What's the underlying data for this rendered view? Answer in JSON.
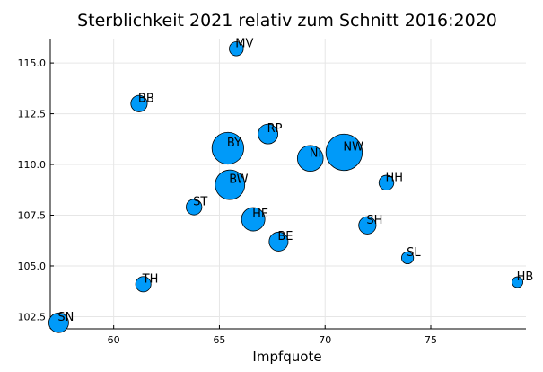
{
  "chart_data": {
    "type": "scatter",
    "title": "Sterblichkeit 2021 relativ zum Schnitt 2016:2020",
    "xlabel": "Impfquote",
    "ylabel": "",
    "xlim": [
      57.0,
      79.5
    ],
    "ylim": [
      101.9,
      116.2
    ],
    "xticks": [
      "60",
      "65",
      "70",
      "75"
    ],
    "yticks": [
      "102.5",
      "105.0",
      "107.5",
      "110.0",
      "112.5",
      "115.0"
    ],
    "grid": true,
    "legend": "none",
    "marker_color": "#009af9",
    "points": [
      {
        "label": "MV",
        "x": 65.8,
        "y": 115.7,
        "size": 1.6
      },
      {
        "label": "BB",
        "x": 61.2,
        "y": 113.0,
        "size": 2.5
      },
      {
        "label": "RP",
        "x": 67.3,
        "y": 111.5,
        "size": 4.1
      },
      {
        "label": "BY",
        "x": 65.4,
        "y": 110.8,
        "size": 13.1
      },
      {
        "label": "NI",
        "x": 69.3,
        "y": 110.3,
        "size": 8.0
      },
      {
        "label": "NW",
        "x": 70.9,
        "y": 110.6,
        "size": 17.9
      },
      {
        "label": "HH",
        "x": 72.9,
        "y": 109.1,
        "size": 1.9
      },
      {
        "label": "BW",
        "x": 65.5,
        "y": 109.0,
        "size": 11.1
      },
      {
        "label": "ST",
        "x": 63.8,
        "y": 107.9,
        "size": 2.2
      },
      {
        "label": "HE",
        "x": 66.6,
        "y": 107.3,
        "size": 6.3
      },
      {
        "label": "SH",
        "x": 72.0,
        "y": 107.0,
        "size": 2.9
      },
      {
        "label": "BE",
        "x": 67.8,
        "y": 106.2,
        "size": 3.7
      },
      {
        "label": "SL",
        "x": 73.9,
        "y": 105.4,
        "size": 1.0
      },
      {
        "label": "HB",
        "x": 79.1,
        "y": 104.2,
        "size": 0.7
      },
      {
        "label": "TH",
        "x": 61.4,
        "y": 104.1,
        "size": 2.1
      },
      {
        "label": "SN",
        "x": 57.4,
        "y": 102.2,
        "size": 4.1
      }
    ]
  }
}
